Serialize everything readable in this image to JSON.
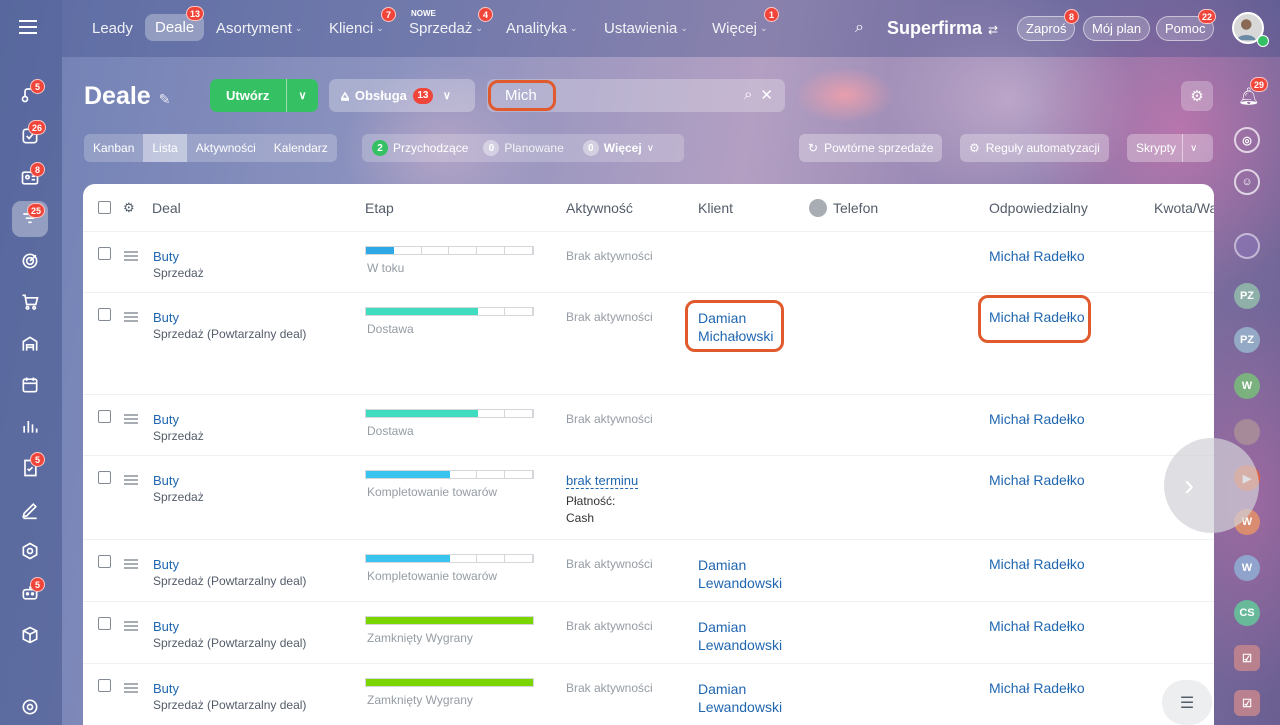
{
  "nav": {
    "items": [
      {
        "label": "Leady",
        "badge": ""
      },
      {
        "label": "Deale",
        "badge": "13"
      },
      {
        "label": "Asortyment",
        "badge": ""
      },
      {
        "label": "Klienci",
        "badge": "7"
      },
      {
        "label": "Sprzedaż",
        "badge": "4",
        "tag": "NOWE"
      },
      {
        "label": "Analityka",
        "badge": ""
      },
      {
        "label": "Ustawienia",
        "badge": ""
      },
      {
        "label": "Więcej",
        "badge": "1"
      }
    ],
    "brand": "Superfirma",
    "invite_label": "Zaproś",
    "invite_badge": "8",
    "plan_label": "Mój plan",
    "help_label": "Pomoc",
    "help_badge": "22"
  },
  "left_sidebar": {
    "badges": [
      "5",
      "26",
      "8",
      "25",
      "5",
      "5"
    ]
  },
  "header": {
    "title": "Deale",
    "create_label": "Utwórz",
    "funnel_label": "Obsługa",
    "funnel_badge": "13",
    "search_value": "Mich"
  },
  "views": [
    "Kanban",
    "Lista",
    "Aktywności",
    "Kalendarz"
  ],
  "counters": {
    "incoming_count": "2",
    "incoming_label": "Przychodzące",
    "planned_count": "0",
    "planned_label": "Planowane",
    "more_count": "0",
    "more_label": "Więcej"
  },
  "actions": {
    "repeat_sales": "Powtórne sprzedaże",
    "automation": "Reguły automatyzacji",
    "scripts": "Skrypty"
  },
  "table": {
    "columns": {
      "deal": "Deal",
      "stage": "Etap",
      "activity": "Aktywność",
      "client": "Klient",
      "phone": "Telefon",
      "responsible": "Odpowiedzialny",
      "amount": "Kwota/Wa"
    },
    "rows": [
      {
        "name": "Buty",
        "type": "Sprzedaż",
        "stage": "W toku",
        "activity": "Brak aktywności",
        "activity_extra": "",
        "client1": "",
        "client2": "",
        "responsible": "Michał Radełko",
        "fill": 0.17,
        "color": "#2fa8e6"
      },
      {
        "name": "Buty",
        "type": "Sprzedaż (Powtarzalny deal)",
        "stage": "Dostawa",
        "activity": "Brak aktywności",
        "activity_extra": "",
        "client1": "Damian",
        "client2": "Michałowski",
        "responsible": "Michał Radełko",
        "fill": 0.67,
        "color": "#3fdcc0"
      },
      {
        "name": "Buty",
        "type": "Sprzedaż",
        "stage": "Dostawa",
        "activity": "Brak aktywności",
        "activity_extra": "",
        "client1": "",
        "client2": "",
        "responsible": "Michał Radełko",
        "fill": 0.67,
        "color": "#3fdcc0"
      },
      {
        "name": "Buty",
        "type": "Sprzedaż",
        "stage": "Kompletowanie towarów",
        "activity": "brak terminu",
        "activity_extra": "Płatność:",
        "activity_extra2": "Cash",
        "client1": "",
        "client2": "",
        "responsible": "Michał Radełko",
        "fill": 0.5,
        "color": "#39c4ef"
      },
      {
        "name": "Buty",
        "type": "Sprzedaż (Powtarzalny deal)",
        "stage": "Kompletowanie towarów",
        "activity": "Brak aktywności",
        "activity_extra": "",
        "client1": "Damian",
        "client2": "Lewandowski",
        "responsible": "Michał Radełko",
        "fill": 0.5,
        "color": "#39c4ef"
      },
      {
        "name": "Buty",
        "type": "Sprzedaż (Powtarzalny deal)",
        "stage": "Zamknięty Wygrany",
        "activity": "Brak aktywności",
        "activity_extra": "",
        "client1": "Damian",
        "client2": "Lewandowski",
        "responsible": "Michał Radełko",
        "fill": 1,
        "color": "#7bd500"
      },
      {
        "name": "Buty",
        "type": "Sprzedaż (Powtarzalny deal)",
        "stage": "Zamknięty Wygrany",
        "activity": "Brak aktywności",
        "activity_extra": "",
        "client1": "Damian",
        "client2": "Lewandowski",
        "responsible": "Michał Radełko",
        "fill": 1,
        "color": "#7bd500"
      }
    ]
  },
  "right_sidebar": {
    "bell_badge": "29",
    "avatars": [
      "PZ",
      "PZ",
      "W",
      "W",
      "W",
      "CS"
    ]
  }
}
